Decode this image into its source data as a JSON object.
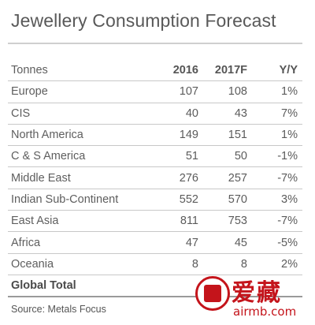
{
  "title": "Jewellery Consumption Forecast",
  "table": {
    "header": {
      "unit": "Tonnes",
      "col1": "2016",
      "col2": "2017F",
      "col3": "Y/Y"
    },
    "rows": [
      {
        "region": "Europe",
        "v2016": "107",
        "v2017": "108",
        "yy": "1%"
      },
      {
        "region": "CIS",
        "v2016": "40",
        "v2017": "43",
        "yy": "7%"
      },
      {
        "region": "North America",
        "v2016": "149",
        "v2017": "151",
        "yy": "1%"
      },
      {
        "region": "C & S America",
        "v2016": "51",
        "v2017": "50",
        "yy": "-1%"
      },
      {
        "region": "Middle East",
        "v2016": "276",
        "v2017": "257",
        "yy": "-7%"
      },
      {
        "region": "Indian Sub-Continent",
        "v2016": "552",
        "v2017": "570",
        "yy": "3%"
      },
      {
        "region": "East Asia",
        "v2016": "811",
        "v2017": "753",
        "yy": "-7%"
      },
      {
        "region": "Africa",
        "v2016": "47",
        "v2017": "45",
        "yy": "-5%"
      },
      {
        "region": "Oceania",
        "v2016": "8",
        "v2017": "8",
        "yy": "2%"
      }
    ],
    "total_label": "Global Total"
  },
  "source": "Source: Metals Focus",
  "watermark": {
    "chinese": "爱藏",
    "url": "airmb.com"
  }
}
